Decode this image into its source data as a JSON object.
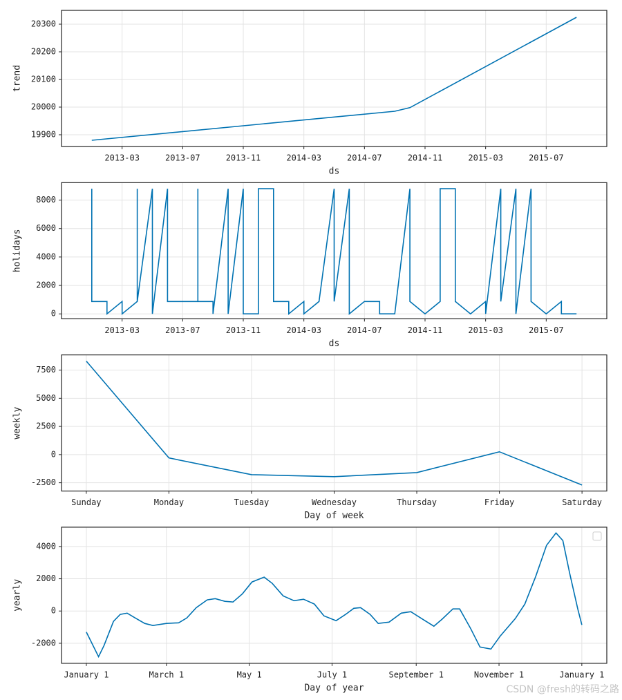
{
  "chart_data": [
    {
      "type": "line",
      "ylabel": "trend",
      "xlabel": "ds",
      "color": "#0072b2",
      "grid": true,
      "x": [
        "2013-01",
        "2014-09",
        "2014-10",
        "2015-09"
      ],
      "values": [
        19880,
        19985,
        19998,
        20325
      ],
      "xlim": [
        "2012-11",
        "2015-11"
      ],
      "xticks": [
        "2013-03",
        "2013-07",
        "2013-11",
        "2014-03",
        "2014-07",
        "2014-11",
        "2015-03",
        "2015-07"
      ],
      "ylim": [
        19857.5,
        20350
      ],
      "yticks": [
        19900,
        20000,
        20100,
        20200,
        20300
      ]
    },
    {
      "type": "line",
      "ylabel": "holidays",
      "xlabel": "ds",
      "color": "#0072b2",
      "grid": true,
      "x": [
        "2013-01",
        "2013-01",
        "2013-02",
        "2013-02",
        "2013-03",
        "2013-03",
        "2013-04",
        "2013-04",
        "2013-04",
        "2013-05",
        "2013-05",
        "2013-06",
        "2013-06",
        "2013-07",
        "2013-08",
        "2013-08",
        "2013-08",
        "2013-09",
        "2013-09",
        "2013-10",
        "2013-10",
        "2013-11",
        "2013-11",
        "2013-12",
        "2013-12",
        "2013-12",
        "2014-01",
        "2014-01",
        "2014-02",
        "2014-02",
        "2014-03",
        "2014-03",
        "2014-04",
        "2014-05",
        "2014-05",
        "2014-06",
        "2014-06",
        "2014-07",
        "2014-08",
        "2014-08",
        "2014-09",
        "2014-10",
        "2014-10",
        "2014-11",
        "2014-12",
        "2014-12",
        "2015-01",
        "2015-01",
        "2015-02",
        "2015-03",
        "2015-03",
        "2015-04",
        "2015-04",
        "2015-05",
        "2015-05",
        "2015-06",
        "2015-06",
        "2015-07",
        "2015-08",
        "2015-08",
        "2015-09"
      ],
      "values": [
        8800,
        870,
        870,
        0,
        870,
        0,
        870,
        8800,
        870,
        8800,
        0,
        8800,
        870,
        870,
        870,
        8800,
        870,
        870,
        0,
        8800,
        0,
        8800,
        0,
        0,
        870,
        8800,
        8800,
        870,
        870,
        0,
        870,
        0,
        870,
        8800,
        870,
        8800,
        0,
        870,
        870,
        0,
        0,
        8800,
        870,
        0,
        870,
        8800,
        8800,
        870,
        0,
        870,
        0,
        8800,
        870,
        8800,
        0,
        8800,
        870,
        0,
        870,
        0,
        0
      ],
      "xlim": [
        "2012-11",
        "2015-11"
      ],
      "xticks": [
        "2013-03",
        "2013-07",
        "2013-11",
        "2014-03",
        "2014-07",
        "2014-11",
        "2015-03",
        "2015-07"
      ],
      "ylim": [
        -343,
        9227
      ],
      "yticks": [
        0,
        2000,
        4000,
        6000,
        8000
      ]
    },
    {
      "type": "line",
      "ylabel": "weekly",
      "xlabel": "Day of week",
      "color": "#0072b2",
      "grid": true,
      "categories": [
        "Sunday",
        "Monday",
        "Tuesday",
        "Wednesday",
        "Thursday",
        "Friday",
        "Saturday"
      ],
      "values": [
        8300,
        -300,
        -1780,
        -1960,
        -1600,
        250,
        -2700
      ],
      "ylim": [
        -3236,
        8850
      ],
      "yticks": [
        -2500,
        0,
        2500,
        5000,
        7500
      ]
    },
    {
      "type": "line",
      "ylabel": "yearly",
      "xlabel": "Day of year",
      "color": "#0072b2",
      "grid": true,
      "legend": "upper right",
      "x": [
        0,
        9,
        13,
        20,
        25,
        30,
        36,
        43,
        49,
        59,
        68,
        74,
        81,
        89,
        95,
        102,
        108,
        115,
        122,
        131,
        137,
        145,
        153,
        160,
        168,
        175,
        184,
        191,
        197,
        202,
        209,
        215,
        223,
        232,
        239,
        247,
        256,
        262,
        270,
        275,
        283,
        290,
        298,
        305,
        316,
        323,
        331,
        339,
        346,
        351,
        356,
        362,
        365
      ],
      "values": [
        -1300,
        -2830,
        -2140,
        -640,
        -210,
        -130,
        -430,
        -770,
        -900,
        -770,
        -730,
        -430,
        210,
        690,
        770,
        600,
        560,
        1070,
        1800,
        2100,
        1710,
        940,
        640,
        730,
        430,
        -300,
        -600,
        -210,
        170,
        210,
        -210,
        -770,
        -690,
        -130,
        -40,
        -470,
        -940,
        -510,
        130,
        130,
        -1070,
        -2230,
        -2360,
        -1540,
        -470,
        430,
        2140,
        4070,
        4840,
        4370,
        2360,
        130,
        -860
      ],
      "xlim": [
        -18.3,
        383.4
      ],
      "xticks": [
        {
          "value": 0,
          "label": "January 1"
        },
        {
          "value": 59,
          "label": "March 1"
        },
        {
          "value": 120,
          "label": "May 1"
        },
        {
          "value": 181,
          "label": "July 1"
        },
        {
          "value": 243,
          "label": "September 1"
        },
        {
          "value": 304,
          "label": "November 1"
        },
        {
          "value": 365,
          "label": "January 1"
        }
      ],
      "ylim": [
        -3242,
        5199
      ],
      "yticks": [
        -2000,
        0,
        2000,
        4000
      ]
    }
  ],
  "watermark": "CSDN @fresh的转码之路"
}
